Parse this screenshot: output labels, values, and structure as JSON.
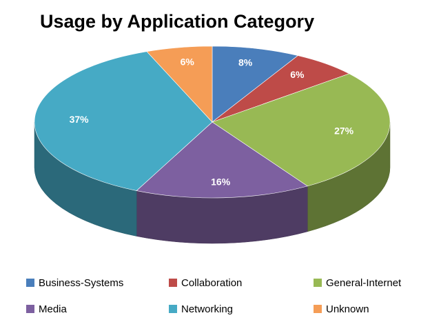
{
  "chart_data": {
    "type": "pie",
    "title": "Usage by Application Category",
    "categories": [
      "Business-Systems",
      "Collaboration",
      "General-Internet",
      "Media",
      "Networking",
      "Unknown"
    ],
    "values": [
      8,
      6,
      27,
      16,
      37,
      6
    ],
    "value_labels": [
      "8%",
      "6%",
      "27%",
      "16%",
      "37%",
      "6%"
    ],
    "colors": [
      "#4a7ebb",
      "#be4b48",
      "#98b954",
      "#7d60a0",
      "#46aac5",
      "#f59d56"
    ]
  }
}
